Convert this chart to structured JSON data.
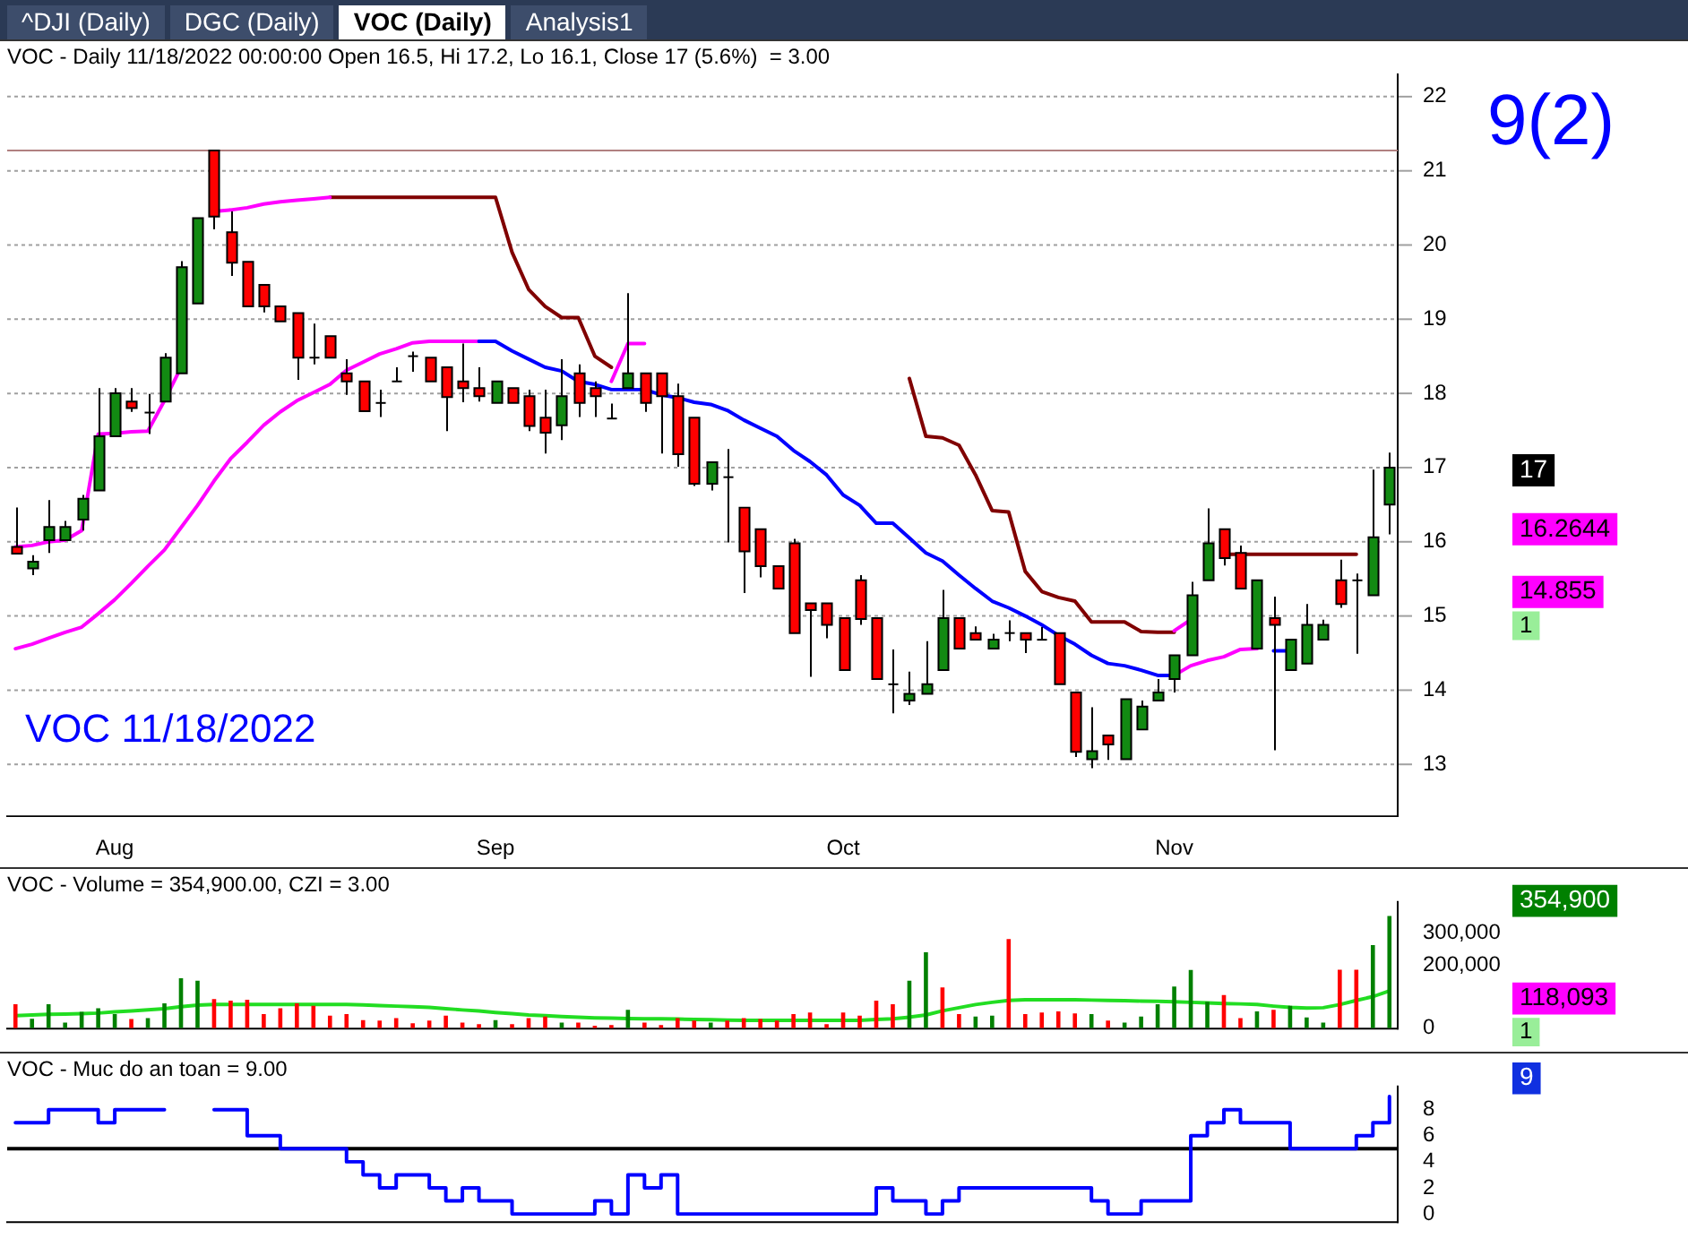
{
  "chart_data": [
    {
      "type": "candlestick",
      "title": "VOC - Daily 11/18/2022 00:00:00 Open 16.5, Hi 17.2, Lo 16.1, Close 17 (5.6%)  = 3.00",
      "categories": [
        null,
        null,
        null,
        null,
        null,
        null,
        "Aug",
        null,
        null,
        null,
        null,
        null,
        null,
        null,
        null,
        null,
        null,
        null,
        null,
        null,
        null,
        null,
        null,
        null,
        null,
        null,
        null,
        null,
        null,
        "Sep",
        null,
        null,
        null,
        null,
        null,
        null,
        null,
        null,
        null,
        null,
        null,
        null,
        null,
        null,
        null,
        null,
        null,
        null,
        null,
        null,
        "Oct",
        null,
        null,
        null,
        null,
        null,
        null,
        null,
        null,
        null,
        null,
        null,
        null,
        null,
        null,
        null,
        null,
        null,
        null,
        null,
        "Nov",
        null,
        null,
        null,
        null,
        null,
        null,
        null,
        null,
        null,
        null,
        null,
        null,
        null
      ],
      "ohlc": [
        [
          15.93,
          16.46,
          15.84,
          15.84
        ],
        [
          15.64,
          15.82,
          15.55,
          15.73
        ],
        [
          16.02,
          16.56,
          15.85,
          16.2
        ],
        [
          16.02,
          16.28,
          16.02,
          16.2
        ],
        [
          16.3,
          16.63,
          16.15,
          16.58
        ],
        [
          16.69,
          18.07,
          16.69,
          17.42
        ],
        [
          17.42,
          18.07,
          17.42,
          18.0
        ],
        [
          17.89,
          18.07,
          17.75,
          17.8
        ],
        [
          17.74,
          17.99,
          17.45,
          17.74
        ],
        [
          17.89,
          18.54,
          17.89,
          18.48
        ],
        [
          18.27,
          19.78,
          18.27,
          19.7
        ],
        [
          19.21,
          20.36,
          19.21,
          20.36
        ],
        [
          21.27,
          21.27,
          20.21,
          20.38
        ],
        [
          20.17,
          20.45,
          19.58,
          19.76
        ],
        [
          19.77,
          19.77,
          19.17,
          19.17
        ],
        [
          19.46,
          19.46,
          19.09,
          19.17
        ],
        [
          19.17,
          19.17,
          18.97,
          18.97
        ],
        [
          19.08,
          19.08,
          18.18,
          18.48
        ],
        [
          18.48,
          18.94,
          18.39,
          18.48
        ],
        [
          18.77,
          18.77,
          18.48,
          18.48
        ],
        [
          18.27,
          18.46,
          17.98,
          18.16
        ],
        [
          18.16,
          18.16,
          17.76,
          17.76
        ],
        [
          17.87,
          18.05,
          17.68,
          17.87
        ],
        [
          18.16,
          18.35,
          18.16,
          18.16
        ],
        [
          18.5,
          18.56,
          18.29,
          18.5
        ],
        [
          18.48,
          18.48,
          18.16,
          18.16
        ],
        [
          18.35,
          18.35,
          17.49,
          17.95
        ],
        [
          18.16,
          18.67,
          17.88,
          18.07
        ],
        [
          18.07,
          18.35,
          17.89,
          17.96
        ],
        [
          17.87,
          18.16,
          17.87,
          18.16
        ],
        [
          18.07,
          18.07,
          17.87,
          17.87
        ],
        [
          17.96,
          18.05,
          17.49,
          17.56
        ],
        [
          17.67,
          18.05,
          17.19,
          17.47
        ],
        [
          17.57,
          18.46,
          17.37,
          17.96
        ],
        [
          18.27,
          18.39,
          17.68,
          17.87
        ],
        [
          18.07,
          18.16,
          17.68,
          17.96
        ],
        [
          17.66,
          17.86,
          17.66,
          17.66
        ],
        [
          18.07,
          19.35,
          18.07,
          18.27
        ],
        [
          18.27,
          18.27,
          17.75,
          17.87
        ],
        [
          18.27,
          18.27,
          17.19,
          17.96
        ],
        [
          17.96,
          18.13,
          17.01,
          17.18
        ],
        [
          17.67,
          17.67,
          16.75,
          16.78
        ],
        [
          16.78,
          17.07,
          16.69,
          17.07
        ],
        [
          16.87,
          17.25,
          15.99,
          16.87
        ],
        [
          16.46,
          16.46,
          15.31,
          15.87
        ],
        [
          16.17,
          16.17,
          15.52,
          15.67
        ],
        [
          15.67,
          15.67,
          15.37,
          15.37
        ],
        [
          15.98,
          16.04,
          14.77,
          14.77
        ],
        [
          15.17,
          15.17,
          14.18,
          15.08
        ],
        [
          15.17,
          15.17,
          14.7,
          14.88
        ],
        [
          14.97,
          14.97,
          14.27,
          14.27
        ],
        [
          15.48,
          15.55,
          14.88,
          14.96
        ],
        [
          14.97,
          14.97,
          14.15,
          14.15
        ],
        [
          14.08,
          14.55,
          13.69,
          14.08
        ],
        [
          13.86,
          14.25,
          13.8,
          13.95
        ],
        [
          13.95,
          14.66,
          13.95,
          14.08
        ],
        [
          14.27,
          15.35,
          14.27,
          14.97
        ],
        [
          14.97,
          14.97,
          14.56,
          14.56
        ],
        [
          14.77,
          14.86,
          14.68,
          14.68
        ],
        [
          14.56,
          14.76,
          14.56,
          14.68
        ],
        [
          14.77,
          14.94,
          14.66,
          14.77
        ],
        [
          14.77,
          14.77,
          14.5,
          14.68
        ],
        [
          14.68,
          14.85,
          14.68,
          14.68
        ],
        [
          14.77,
          14.77,
          14.08,
          14.08
        ],
        [
          13.97,
          13.97,
          13.1,
          13.17
        ],
        [
          13.07,
          13.77,
          12.95,
          13.18
        ],
        [
          13.39,
          13.39,
          13.06,
          13.27
        ],
        [
          13.07,
          13.88,
          13.07,
          13.88
        ],
        [
          13.47,
          13.86,
          13.47,
          13.78
        ],
        [
          13.86,
          14.15,
          13.86,
          13.97
        ],
        [
          14.15,
          14.47,
          13.97,
          14.47
        ],
        [
          14.47,
          15.46,
          14.47,
          15.28
        ],
        [
          15.48,
          16.45,
          15.48,
          15.98
        ],
        [
          16.17,
          16.17,
          15.68,
          15.78
        ],
        [
          15.85,
          15.95,
          15.37,
          15.37
        ],
        [
          14.56,
          15.48,
          14.56,
          15.48
        ],
        [
          14.97,
          15.26,
          13.19,
          14.88
        ],
        [
          14.27,
          14.68,
          14.27,
          14.68
        ],
        [
          14.36,
          15.16,
          14.36,
          14.88
        ],
        [
          14.68,
          14.95,
          14.68,
          14.88
        ],
        [
          15.48,
          15.76,
          15.11,
          15.16
        ],
        [
          15.48,
          15.57,
          14.49,
          15.48
        ],
        [
          15.28,
          16.97,
          15.28,
          16.06
        ],
        [
          16.5,
          17.2,
          16.1,
          17
        ]
      ],
      "series": [
        {
          "type": "line",
          "color": "#ff00ff",
          "values": [
            15.93,
            15.95,
            16.0,
            16.02,
            16.15,
            17.45,
            17.46,
            17.48,
            17.49,
            17.9,
            18.35,
            null,
            20.45,
            20.47,
            20.5,
            20.55,
            20.58,
            20.6,
            20.62,
            20.64,
            null,
            null,
            null,
            null,
            null,
            null,
            null,
            null,
            null,
            null,
            null,
            null,
            null,
            null,
            null,
            null,
            18.16,
            18.67,
            18.67,
            null,
            null,
            null,
            null,
            null,
            null,
            null,
            null,
            null,
            null,
            null,
            null,
            null,
            null,
            null,
            null,
            null,
            null,
            null,
            null,
            null,
            null,
            null,
            null,
            null,
            null,
            null,
            null,
            null,
            null,
            null,
            14.8,
            14.95,
            null,
            null,
            null,
            null,
            null,
            null,
            null,
            null,
            null,
            null,
            null,
            null
          ]
        },
        {
          "type": "line",
          "color": "#800000",
          "values": [
            null,
            null,
            null,
            null,
            null,
            null,
            null,
            null,
            null,
            null,
            null,
            null,
            null,
            null,
            null,
            null,
            null,
            null,
            null,
            20.64,
            20.64,
            20.64,
            20.64,
            20.64,
            20.64,
            20.64,
            20.64,
            20.64,
            20.64,
            20.64,
            19.9,
            19.4,
            19.17,
            19.02,
            19.02,
            18.5,
            18.35,
            null,
            null,
            null,
            null,
            null,
            null,
            null,
            null,
            null,
            null,
            null,
            null,
            null,
            null,
            null,
            null,
            null,
            18.2,
            17.42,
            17.4,
            17.3,
            16.9,
            16.42,
            16.4,
            15.6,
            15.33,
            15.25,
            15.2,
            14.92,
            14.92,
            14.92,
            14.79,
            14.78,
            14.78,
            null,
            null,
            15.83,
            15.83,
            15.83,
            15.83,
            15.83,
            15.83,
            15.83,
            15.83,
            15.83,
            null,
            null
          ]
        },
        {
          "type": "line",
          "color": "#0000ff",
          "values": [
            null,
            null,
            null,
            null,
            null,
            null,
            null,
            null,
            null,
            null,
            null,
            null,
            null,
            null,
            null,
            null,
            null,
            null,
            null,
            null,
            null,
            null,
            null,
            null,
            null,
            null,
            null,
            null,
            18.7,
            18.7,
            18.57,
            18.46,
            18.35,
            18.3,
            18.16,
            18.12,
            18.05,
            18.05,
            18.05,
            17.98,
            17.94,
            17.88,
            17.85,
            17.77,
            17.64,
            17.53,
            17.42,
            17.23,
            17.08,
            16.9,
            16.63,
            16.49,
            16.25,
            16.25,
            16.05,
            15.85,
            15.74,
            15.55,
            15.37,
            15.2,
            15.11,
            15.0,
            14.88,
            14.74,
            14.62,
            14.47,
            14.36,
            14.33,
            14.27,
            14.2,
            14.2,
            null,
            null,
            null,
            null,
            null,
            14.53,
            14.53,
            null,
            null,
            null,
            null,
            null,
            null
          ]
        },
        {
          "type": "line",
          "color": "#ff00ff",
          "values": [
            14.56,
            14.62,
            14.7,
            14.78,
            14.85,
            15.03,
            15.22,
            15.44,
            15.67,
            15.89,
            16.19,
            16.49,
            16.82,
            17.12,
            17.34,
            17.57,
            17.75,
            17.9,
            18.01,
            18.12,
            18.31,
            18.42,
            18.53,
            18.6,
            18.68,
            18.7,
            18.7,
            18.7,
            18.7,
            null,
            null,
            null,
            null,
            null,
            null,
            null,
            null,
            null,
            null,
            null,
            null,
            null,
            null,
            null,
            null,
            null,
            null,
            null,
            null,
            null,
            null,
            null,
            null,
            null,
            null,
            null,
            null,
            null,
            null,
            null,
            null,
            null,
            null,
            null,
            null,
            null,
            null,
            null,
            null,
            null,
            14.2,
            14.33,
            14.4,
            14.45,
            14.55,
            14.56,
            null,
            null,
            null,
            null,
            null,
            null,
            null,
            null
          ]
        }
      ],
      "ylim": [
        12.3,
        22.3
      ],
      "yticks": [
        13,
        14,
        15,
        16,
        17,
        18,
        19,
        20,
        21,
        22
      ],
      "ref_lines": [
        {
          "axis": "y",
          "value": 21.27,
          "color": "#b08080"
        }
      ],
      "annotations": [
        "^DJI (Daily)",
        "DGC (Daily)",
        "VOC (Daily)",
        "Analysis1",
        "VOC 11/18/2022",
        "9(2)",
        "17",
        "16.2644",
        "14.855",
        "1"
      ],
      "grid": "y",
      "legend": false
    },
    {
      "type": "bar",
      "title": "VOC - Volume = 354,900.00, CZI = 3.00",
      "categories": [
        null,
        null,
        null,
        null,
        null,
        null,
        null,
        null,
        null,
        null,
        null,
        null,
        null,
        null,
        null,
        null,
        null,
        null,
        null,
        null,
        null,
        null,
        null,
        null,
        null,
        null,
        null,
        null,
        null,
        null,
        null,
        null,
        null,
        null,
        null,
        null,
        null,
        null,
        null,
        null,
        null,
        null,
        null,
        null,
        null,
        null,
        null,
        null,
        null,
        null,
        null,
        null,
        null,
        null,
        null,
        null,
        null,
        null,
        null,
        null,
        null,
        null,
        null,
        null,
        null,
        null,
        null,
        null,
        null,
        null,
        null,
        null,
        null,
        null,
        null,
        null,
        null,
        null,
        null,
        null,
        null,
        null,
        null,
        null
      ],
      "series": [
        {
          "type": "bar",
          "values": [
            76000,
            30000,
            76000,
            18000,
            52000,
            63000,
            45000,
            29000,
            32000,
            79000,
            158000,
            150000,
            92000,
            87000,
            90000,
            45000,
            63000,
            79000,
            71000,
            40000,
            45000,
            26000,
            24000,
            32000,
            16000,
            24000,
            40000,
            18000,
            13000,
            26000,
            13000,
            32000,
            37000,
            18000,
            18000,
            8000,
            10000,
            58000,
            18000,
            10000,
            32000,
            24000,
            18000,
            24000,
            32000,
            29000,
            24000,
            45000,
            50000,
            13000,
            50000,
            40000,
            87000,
            76000,
            150000,
            240000,
            129000,
            45000,
            37000,
            40000,
            282000,
            45000,
            50000,
            53000,
            47000,
            45000,
            24000,
            18000,
            37000,
            76000,
            132000,
            184000,
            84000,
            105000,
            32000,
            53000,
            58000,
            71000,
            34000,
            18000,
            185000,
            185000,
            263000,
            354900
          ],
          "colors": [
            "#ff0000",
            "#008000",
            "#008000",
            "#008000",
            "#008000",
            "#008000",
            "#008000",
            "#ff0000",
            "#008000",
            "#008000",
            "#008000",
            "#008000",
            "#ff0000",
            "#ff0000",
            "#ff0000",
            "#ff0000",
            "#ff0000",
            "#ff0000",
            "#ff0000",
            "#ff0000",
            "#ff0000",
            "#ff0000",
            "#ff0000",
            "#ff0000",
            "#ff0000",
            "#ff0000",
            "#ff0000",
            "#ff0000",
            "#ff0000",
            "#008000",
            "#ff0000",
            "#ff0000",
            "#ff0000",
            "#008000",
            "#ff0000",
            "#ff0000",
            "#ff0000",
            "#008000",
            "#ff0000",
            "#ff0000",
            "#ff0000",
            "#ff0000",
            "#008000",
            "#ff0000",
            "#ff0000",
            "#ff0000",
            "#ff0000",
            "#ff0000",
            "#ff0000",
            "#ff0000",
            "#ff0000",
            "#ff0000",
            "#ff0000",
            "#ff0000",
            "#008000",
            "#008000",
            "#ff0000",
            "#ff0000",
            "#008000",
            "#008000",
            "#ff0000",
            "#ff0000",
            "#ff0000",
            "#ff0000",
            "#ff0000",
            "#008000",
            "#ff0000",
            "#008000",
            "#008000",
            "#008000",
            "#008000",
            "#008000",
            "#008000",
            "#ff0000",
            "#ff0000",
            "#008000",
            "#ff0000",
            "#008000",
            "#008000",
            "#008000",
            "#ff0000",
            "#ff0000",
            "#008000",
            "#008000"
          ]
        },
        {
          "type": "line",
          "color": "#22dd22",
          "values": [
            40000,
            42000,
            44000,
            45000,
            46000,
            48000,
            52000,
            55000,
            58000,
            62000,
            68000,
            73000,
            75000,
            75000,
            75000,
            75000,
            75000,
            75000,
            75000,
            75000,
            75000,
            74000,
            72000,
            70000,
            68000,
            66000,
            62000,
            58000,
            55000,
            50000,
            46000,
            42000,
            40000,
            37000,
            35000,
            33000,
            32000,
            31000,
            30000,
            30000,
            29000,
            28000,
            27000,
            26000,
            25000,
            25000,
            25000,
            25000,
            25000,
            25000,
            25000,
            25000,
            28000,
            30000,
            35000,
            42000,
            55000,
            65000,
            75000,
            82000,
            88000,
            90000,
            90000,
            90000,
            90000,
            89000,
            88000,
            87000,
            86000,
            85000,
            84000,
            82000,
            80000,
            78000,
            77000,
            75000,
            70000,
            66000,
            64000,
            65000,
            75000,
            88000,
            100000,
            118093
          ]
        }
      ],
      "ylim": [
        0,
        400000
      ],
      "yticks": [
        {
          "value": 0,
          "label": "0"
        },
        {
          "value": 200000,
          "label": "200,000"
        },
        {
          "value": 300000,
          "label": "300,000"
        }
      ],
      "annotations": [
        "354,900",
        "118,093",
        "1"
      ],
      "tick_labels": "y",
      "legend": false
    },
    {
      "type": "step",
      "title": "VOC - Muc do an toan = 9.00",
      "categories": [
        null,
        null,
        null,
        null,
        null,
        null,
        null,
        null,
        null,
        null,
        null,
        null,
        null,
        null,
        null,
        null,
        null,
        null,
        null,
        null,
        null,
        null,
        null,
        null,
        null,
        null,
        null,
        null,
        null,
        null,
        null,
        null,
        null,
        null,
        null,
        null,
        null,
        null,
        null,
        null,
        null,
        null,
        null,
        null,
        null,
        null,
        null,
        null,
        null,
        null,
        null,
        null,
        null,
        null,
        null,
        null,
        null,
        null,
        null,
        null,
        null,
        null,
        null,
        null,
        null,
        null,
        null,
        null,
        null,
        null,
        null,
        null,
        null,
        null,
        null,
        null,
        null,
        null,
        null,
        null,
        null,
        null,
        null,
        null
      ],
      "series": [
        {
          "color": "#0000ff",
          "values": [
            7,
            7,
            8,
            8,
            8,
            7,
            8,
            8,
            8,
            8,
            null,
            null,
            8,
            8,
            6,
            6,
            5,
            5,
            5,
            5,
            4,
            3,
            2,
            3,
            3,
            2,
            1,
            2,
            1,
            1,
            0,
            0,
            0,
            0,
            0,
            1,
            0,
            3,
            2,
            3,
            0,
            0,
            0,
            0,
            0,
            0,
            0,
            0,
            0,
            0,
            0,
            0,
            2,
            1,
            1,
            0,
            1,
            2,
            2,
            2,
            2,
            2,
            2,
            2,
            2,
            1,
            0,
            0,
            1,
            1,
            1,
            6,
            7,
            8,
            7,
            7,
            7,
            5,
            5,
            5,
            5,
            6,
            7,
            9
          ]
        }
      ],
      "ylim": [
        -0.6,
        9.8
      ],
      "yticks": [
        0,
        2,
        4,
        6,
        8
      ],
      "ref_lines": [
        {
          "axis": "y",
          "value": 5,
          "color": "#000000"
        }
      ],
      "annotations": [
        "9"
      ],
      "tick_labels": "y",
      "legend": false
    }
  ]
}
